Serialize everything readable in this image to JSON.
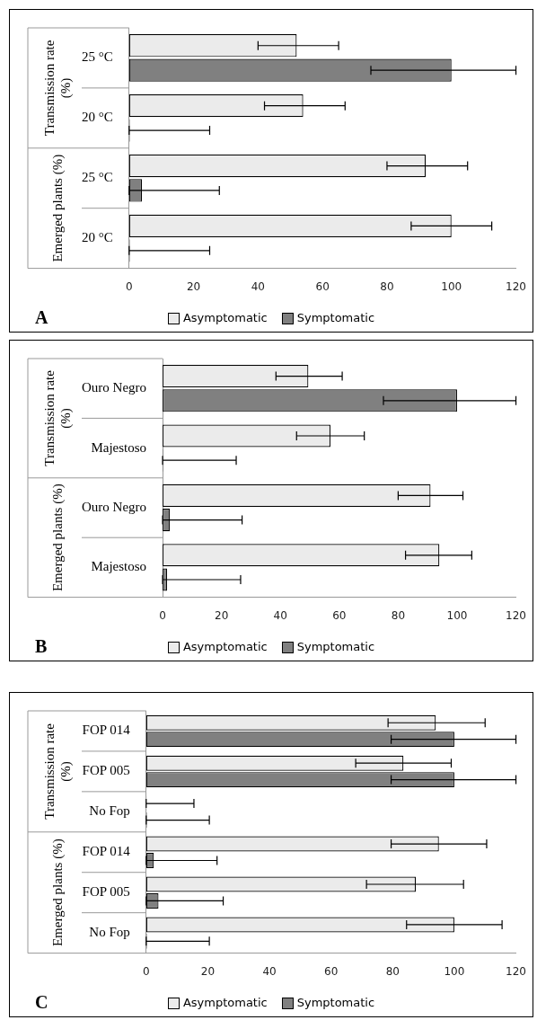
{
  "chart_data": [
    {
      "type": "bar",
      "orientation": "horizontal",
      "title": "A",
      "categories": [
        "25 °C",
        "20 °C",
        "25 °C",
        "20 °C"
      ],
      "xlim": [
        0,
        120
      ],
      "xticks": [
        0,
        20,
        40,
        60,
        80,
        100,
        120
      ],
      "legend": "bottom",
      "annotations": [
        "Transmission rate (%)",
        "Emerged plants (%)"
      ],
      "series": [
        {
          "name": "Asymptomatic",
          "color": "#ebebeb",
          "values": [
            52,
            54,
            92,
            100
          ],
          "errors": [
            [
              40,
              65
            ],
            [
              42,
              67
            ],
            [
              80,
              105
            ],
            [
              87.5,
              112.5
            ]
          ]
        },
        {
          "name": "Symptomatic",
          "color": "#808080",
          "values": [
            100,
            0,
            4,
            0
          ],
          "errors": [
            [
              75,
              120
            ],
            [
              0,
              25
            ],
            [
              0,
              28
            ],
            [
              0,
              25
            ]
          ]
        }
      ]
    },
    {
      "type": "bar",
      "orientation": "horizontal",
      "title": "B",
      "categories": [
        "Ouro Negro",
        "Majestoso",
        "Ouro Negro",
        "Majestoso"
      ],
      "xlim": [
        0,
        120
      ],
      "xticks": [
        0,
        20,
        40,
        60,
        80,
        100,
        120
      ],
      "legend": "bottom",
      "annotations": [
        "Transmission rate (%)",
        "Emerged plants (%)"
      ],
      "series": [
        {
          "name": "Asymptomatic",
          "color": "#ebebeb",
          "values": [
            49.5,
            57,
            91,
            94
          ],
          "errors": [
            [
              38.5,
              61
            ],
            [
              45.5,
              68.5
            ],
            [
              80,
              102
            ],
            [
              82.5,
              105
            ]
          ]
        },
        {
          "name": "Symptomatic",
          "color": "#808080",
          "values": [
            100,
            0,
            2.5,
            1.5
          ],
          "errors": [
            [
              75,
              120
            ],
            [
              0,
              25
            ],
            [
              0,
              27
            ],
            [
              0,
              26.5
            ]
          ]
        }
      ]
    },
    {
      "type": "bar",
      "orientation": "horizontal",
      "title": "C",
      "categories": [
        "FOP 014",
        "FOP 005",
        "No Fop",
        "FOP 014",
        "FOP 005",
        "No Fop"
      ],
      "xlim": [
        0,
        120
      ],
      "xticks": [
        0,
        20,
        40,
        60,
        80,
        100,
        120
      ],
      "legend": "bottom",
      "annotations": [
        "Transmission rate (%)",
        "Emerged plants (%)"
      ],
      "series": [
        {
          "name": "Asymptomatic",
          "color": "#ebebeb",
          "values": [
            94,
            83.5,
            0,
            95,
            87.5,
            100
          ],
          "errors": [
            [
              78.5,
              110
            ],
            [
              68,
              99
            ],
            [
              0,
              15.5
            ],
            [
              79.5,
              110.5
            ],
            [
              71.5,
              103
            ],
            [
              84.5,
              115.5
            ]
          ]
        },
        {
          "name": "Symptomatic",
          "color": "#808080",
          "values": [
            100,
            100,
            0,
            2.5,
            4,
            0
          ],
          "errors": [
            [
              79.5,
              120
            ],
            [
              79.5,
              120
            ],
            [
              0,
              20.5
            ],
            [
              0,
              23
            ],
            [
              0,
              25
            ],
            [
              0,
              20.5
            ]
          ]
        }
      ]
    }
  ]
}
